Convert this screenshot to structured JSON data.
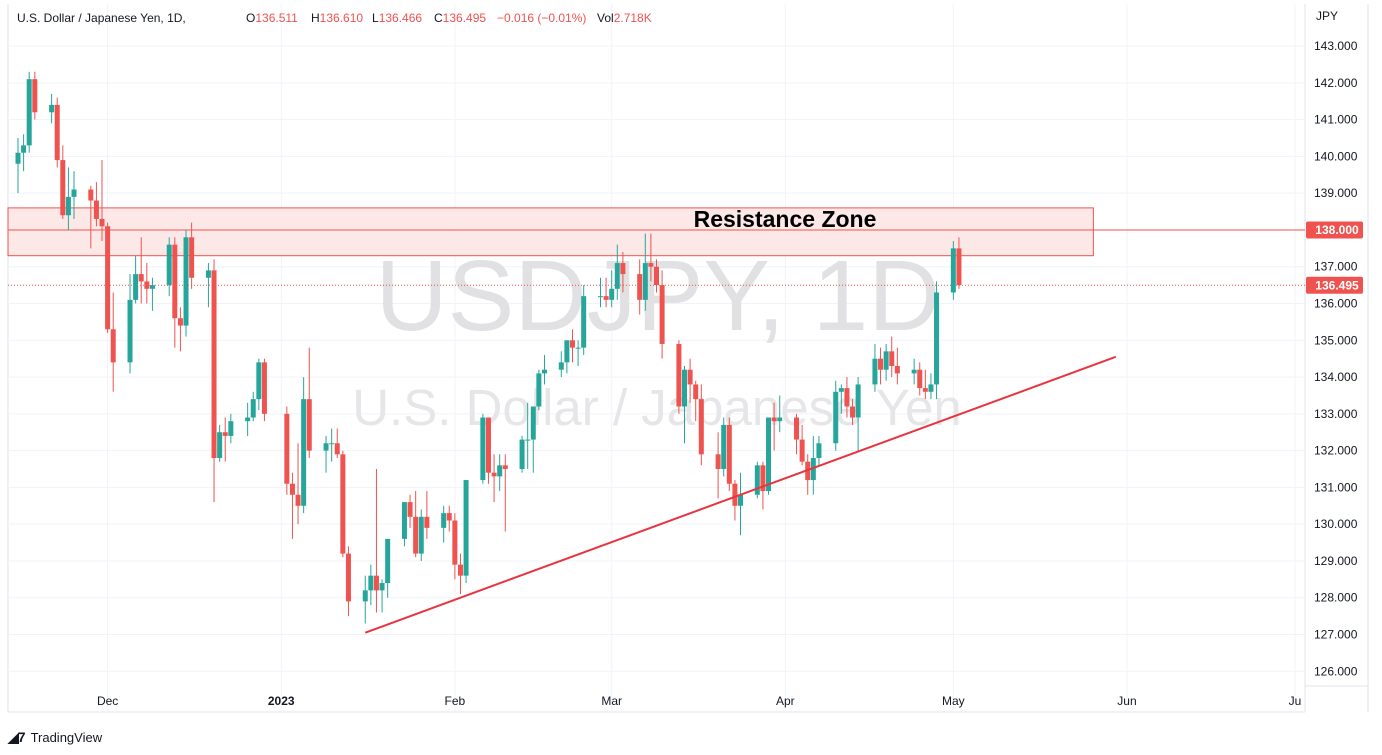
{
  "header": {
    "symbol_title": "U.S. Dollar / Japanese Yen, 1D,",
    "o_label": "O",
    "o_value": "136.511",
    "h_label": "H",
    "h_value": "136.610",
    "l_label": "L",
    "l_value": "136.466",
    "c_label": "C",
    "c_value": "136.495",
    "change": "−0.016 (−0.01%)",
    "vol_label": "Vol",
    "vol_value": "2.718K"
  },
  "watermark": {
    "symbol": "USDJPY, 1D",
    "name": "U.S. Dollar / Japanese Yen"
  },
  "annotations": {
    "resistance_label": "Resistance Zone"
  },
  "axis": {
    "currency": "JPY",
    "price_ticks": [
      "143.000",
      "142.000",
      "141.000",
      "140.000",
      "139.000",
      "138.000",
      "137.000",
      "136.000",
      "135.000",
      "134.000",
      "133.000",
      "132.000",
      "131.000",
      "130.000",
      "129.000",
      "128.000",
      "127.000",
      "126.000"
    ],
    "time_ticks": [
      "Dec",
      "2023",
      "Feb",
      "Mar",
      "Apr",
      "May",
      "Jun",
      "Ju"
    ],
    "price_badge_level": "138.000",
    "price_badge_last": "136.495"
  },
  "colors": {
    "up": "#26a69a",
    "down": "#ef5350",
    "zone_fill": "#fde4e4",
    "zone_border": "#ef5350",
    "trendline": "#e8343e"
  },
  "footer": {
    "brand": "TradingView"
  },
  "chart_data": {
    "type": "candlestick",
    "symbol": "USDJPY",
    "interval": "1D",
    "y_unit": "JPY",
    "ylim": [
      125.6,
      143.6
    ],
    "x_range": [
      "2022-11-15",
      "2023-07-01"
    ],
    "resistance_zone": {
      "from": 137.3,
      "to": 138.6,
      "start": "2022-11-15",
      "end": "2023-05-26"
    },
    "horizontal_line": 138.0,
    "last_price": 136.495,
    "trendline": {
      "start": {
        "date": "2023-01-16",
        "price": 127.05
      },
      "end": {
        "date": "2023-05-30",
        "price": 134.55
      }
    },
    "candles": [
      [
        "2022-11-15",
        139.8,
        140.5,
        139.0,
        140.1
      ],
      [
        "2022-11-16",
        140.1,
        140.6,
        139.6,
        140.3
      ],
      [
        "2022-11-17",
        140.3,
        142.3,
        140.1,
        142.1
      ],
      [
        "2022-11-18",
        142.1,
        142.3,
        141.0,
        141.2
      ],
      [
        "2022-11-21",
        141.2,
        141.7,
        140.9,
        141.4
      ],
      [
        "2022-11-22",
        141.4,
        141.6,
        139.7,
        139.9
      ],
      [
        "2022-11-23",
        139.9,
        140.3,
        138.3,
        138.4
      ],
      [
        "2022-11-24",
        138.4,
        139.7,
        138.0,
        138.9
      ],
      [
        "2022-11-25",
        138.9,
        139.6,
        138.3,
        139.1
      ],
      [
        "2022-11-28",
        139.1,
        139.2,
        137.5,
        138.8
      ],
      [
        "2022-11-29",
        138.8,
        139.3,
        138.1,
        138.3
      ],
      [
        "2022-11-30",
        138.3,
        139.9,
        137.7,
        138.1
      ],
      [
        "2022-12-01",
        138.1,
        138.2,
        135.2,
        135.3
      ],
      [
        "2022-12-02",
        135.3,
        136.3,
        133.6,
        134.4
      ],
      [
        "2022-12-05",
        134.4,
        136.8,
        134.1,
        136.1
      ],
      [
        "2022-12-06",
        136.1,
        137.3,
        136.0,
        136.8
      ],
      [
        "2022-12-07",
        136.8,
        137.8,
        136.0,
        136.6
      ],
      [
        "2022-12-08",
        136.6,
        137.1,
        136.0,
        136.4
      ],
      [
        "2022-12-09",
        136.4,
        136.7,
        135.8,
        136.5
      ],
      [
        "2022-12-12",
        136.5,
        137.8,
        136.2,
        137.6
      ],
      [
        "2022-12-13",
        137.6,
        137.8,
        134.8,
        135.6
      ],
      [
        "2022-12-14",
        135.6,
        135.9,
        134.7,
        135.4
      ],
      [
        "2022-12-15",
        135.4,
        138.0,
        135.1,
        137.8
      ],
      [
        "2022-12-16",
        137.8,
        138.2,
        136.4,
        136.7
      ],
      [
        "2022-12-19",
        136.7,
        137.1,
        135.9,
        136.9
      ],
      [
        "2022-12-20",
        136.9,
        137.2,
        130.6,
        131.8
      ],
      [
        "2022-12-21",
        131.8,
        132.7,
        131.7,
        132.5
      ],
      [
        "2022-12-22",
        132.5,
        132.9,
        131.7,
        132.4
      ],
      [
        "2022-12-23",
        132.4,
        133.0,
        132.2,
        132.8
      ],
      [
        "2022-12-26",
        132.8,
        133.3,
        132.4,
        132.9
      ],
      [
        "2022-12-27",
        132.9,
        133.6,
        132.8,
        133.4
      ],
      [
        "2022-12-28",
        133.4,
        134.5,
        133.1,
        134.4
      ],
      [
        "2022-12-29",
        134.4,
        134.5,
        132.8,
        133.0
      ],
      [
        "2023-01-02",
        133.0,
        133.2,
        130.8,
        131.1
      ],
      [
        "2023-01-03",
        131.1,
        131.4,
        129.6,
        130.8
      ],
      [
        "2023-01-04",
        130.8,
        132.2,
        130.0,
        130.5
      ],
      [
        "2023-01-05",
        130.5,
        134.0,
        130.3,
        133.4
      ],
      [
        "2023-01-06",
        133.4,
        134.8,
        131.8,
        132.0
      ],
      [
        "2023-01-09",
        132.0,
        132.4,
        131.4,
        132.2
      ],
      [
        "2023-01-10",
        132.2,
        132.6,
        131.7,
        132.2
      ],
      [
        "2023-01-11",
        132.2,
        132.6,
        131.8,
        131.9
      ],
      [
        "2023-01-12",
        131.9,
        132.0,
        129.1,
        129.2
      ],
      [
        "2023-01-13",
        129.2,
        129.4,
        127.5,
        127.9
      ],
      [
        "2023-01-16",
        127.9,
        128.6,
        127.3,
        128.2
      ],
      [
        "2023-01-17",
        128.2,
        128.9,
        127.8,
        128.6
      ],
      [
        "2023-01-18",
        128.6,
        131.5,
        127.6,
        128.2
      ],
      [
        "2023-01-19",
        128.2,
        128.5,
        127.6,
        128.4
      ],
      [
        "2023-01-20",
        128.4,
        129.6,
        128.0,
        129.6
      ],
      [
        "2023-01-23",
        129.6,
        130.6,
        129.4,
        130.6
      ],
      [
        "2023-01-24",
        130.6,
        130.8,
        129.9,
        130.2
      ],
      [
        "2023-01-25",
        130.2,
        130.9,
        129.1,
        129.2
      ],
      [
        "2023-01-26",
        129.2,
        130.4,
        129.0,
        130.2
      ],
      [
        "2023-01-27",
        130.2,
        130.9,
        129.6,
        129.9
      ],
      [
        "2023-01-30",
        129.9,
        130.5,
        129.5,
        130.3
      ],
      [
        "2023-01-31",
        130.3,
        130.5,
        129.8,
        130.1
      ],
      [
        "2023-02-01",
        130.1,
        130.3,
        128.5,
        128.9
      ],
      [
        "2023-02-02",
        128.9,
        129.2,
        128.1,
        128.6
      ],
      [
        "2023-02-03",
        128.6,
        131.2,
        128.4,
        131.2
      ],
      [
        "2023-02-06",
        131.2,
        133.0,
        131.1,
        132.9
      ],
      [
        "2023-02-07",
        132.9,
        132.9,
        131.1,
        131.4
      ],
      [
        "2023-02-08",
        131.4,
        131.9,
        130.6,
        131.3
      ],
      [
        "2023-02-09",
        131.3,
        131.9,
        130.9,
        131.6
      ],
      [
        "2023-02-10",
        131.6,
        131.9,
        129.8,
        131.5
      ],
      [
        "2023-02-13",
        131.5,
        132.4,
        131.4,
        132.3
      ],
      [
        "2023-02-14",
        132.3,
        133.3,
        131.5,
        132.3
      ],
      [
        "2023-02-15",
        132.3,
        133.2,
        131.4,
        133.2
      ],
      [
        "2023-02-16",
        133.2,
        134.2,
        133.1,
        134.1
      ],
      [
        "2023-02-17",
        134.1,
        134.6,
        133.8,
        134.2
      ],
      [
        "2023-02-20",
        134.2,
        134.7,
        134.0,
        134.4
      ],
      [
        "2023-02-21",
        134.4,
        135.0,
        134.1,
        135.0
      ],
      [
        "2023-02-22",
        135.0,
        135.3,
        134.4,
        134.8
      ],
      [
        "2023-02-23",
        134.8,
        135.0,
        134.3,
        134.8
      ],
      [
        "2023-02-24",
        134.8,
        136.5,
        134.6,
        136.2
      ],
      [
        "2023-02-27",
        136.2,
        136.7,
        135.9,
        136.2
      ],
      [
        "2023-02-28",
        136.2,
        136.7,
        135.9,
        136.1
      ],
      [
        "2023-03-01",
        136.1,
        136.9,
        135.9,
        136.4
      ],
      [
        "2023-03-02",
        136.4,
        137.6,
        136.1,
        137.1
      ],
      [
        "2023-03-03",
        137.1,
        137.4,
        136.3,
        136.8
      ],
      [
        "2023-03-06",
        136.8,
        137.2,
        135.7,
        136.1
      ],
      [
        "2023-03-07",
        136.1,
        137.9,
        135.8,
        137.1
      ],
      [
        "2023-03-08",
        137.1,
        137.9,
        136.6,
        137.0
      ],
      [
        "2023-03-09",
        137.0,
        137.2,
        136.3,
        136.5
      ],
      [
        "2023-03-10",
        136.5,
        136.9,
        134.5,
        134.9
      ],
      [
        "2023-03-13",
        134.9,
        135.0,
        133.0,
        133.2
      ],
      [
        "2023-03-14",
        133.2,
        134.3,
        132.2,
        134.2
      ],
      [
        "2023-03-15",
        134.2,
        134.5,
        133.3,
        133.8
      ],
      [
        "2023-03-16",
        133.8,
        133.9,
        132.8,
        133.4
      ],
      [
        "2023-03-17",
        133.4,
        133.8,
        131.6,
        131.9
      ],
      [
        "2023-03-20",
        131.9,
        132.5,
        130.7,
        131.5
      ],
      [
        "2023-03-21",
        131.5,
        132.9,
        131.3,
        132.7
      ],
      [
        "2023-03-22",
        132.7,
        132.9,
        130.9,
        131.1
      ],
      [
        "2023-03-23",
        131.1,
        131.2,
        130.1,
        130.5
      ],
      [
        "2023-03-24",
        130.5,
        131.4,
        129.7,
        130.8
      ],
      [
        "2023-03-27",
        130.8,
        131.7,
        130.7,
        131.6
      ],
      [
        "2023-03-28",
        131.6,
        131.7,
        130.4,
        130.9
      ],
      [
        "2023-03-29",
        130.9,
        132.9,
        130.8,
        132.9
      ],
      [
        "2023-03-30",
        132.9,
        133.3,
        132.0,
        132.8
      ],
      [
        "2023-03-31",
        132.8,
        133.5,
        132.5,
        132.9
      ],
      [
        "2023-04-03",
        132.9,
        133.0,
        131.9,
        132.3
      ],
      [
        "2023-04-04",
        132.3,
        132.7,
        131.6,
        131.7
      ],
      [
        "2023-04-05",
        131.7,
        131.9,
        130.8,
        131.2
      ],
      [
        "2023-04-06",
        131.2,
        132.4,
        130.8,
        131.8
      ],
      [
        "2023-04-07",
        131.8,
        132.4,
        131.6,
        132.2
      ],
      [
        "2023-04-10",
        132.2,
        133.9,
        132.0,
        133.6
      ],
      [
        "2023-04-11",
        133.6,
        133.8,
        133.0,
        133.7
      ],
      [
        "2023-04-12",
        133.7,
        134.0,
        132.9,
        133.2
      ],
      [
        "2023-04-13",
        133.2,
        133.4,
        132.7,
        132.9
      ],
      [
        "2023-04-14",
        132.9,
        134.0,
        132.0,
        133.8
      ],
      [
        "2023-04-17",
        133.8,
        134.9,
        133.6,
        134.5
      ],
      [
        "2023-04-18",
        134.5,
        134.8,
        133.8,
        134.2
      ],
      [
        "2023-04-19",
        134.2,
        134.9,
        133.9,
        134.7
      ],
      [
        "2023-04-20",
        134.7,
        135.1,
        134.0,
        134.3
      ],
      [
        "2023-04-21",
        134.3,
        134.8,
        133.8,
        134.1
      ],
      [
        "2023-04-24",
        134.1,
        134.5,
        133.8,
        134.2
      ],
      [
        "2023-04-25",
        134.2,
        134.4,
        133.5,
        133.7
      ],
      [
        "2023-04-26",
        133.7,
        134.2,
        133.4,
        133.6
      ],
      [
        "2023-04-27",
        133.6,
        134.1,
        133.4,
        133.8
      ],
      [
        "2023-04-28",
        133.8,
        136.6,
        133.4,
        136.3
      ],
      [
        "2023-05-01",
        136.3,
        137.7,
        136.1,
        137.5
      ],
      [
        "2023-05-02",
        137.5,
        137.8,
        136.4,
        136.5
      ]
    ]
  }
}
